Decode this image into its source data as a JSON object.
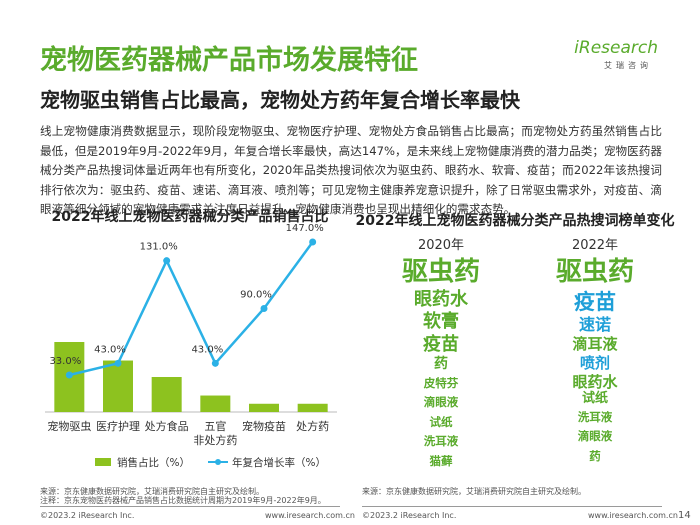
{
  "header": {
    "title": "宠物医药器械产品市场发展特征",
    "subtitle": "宠物驱虫销售占比最高，宠物处方药年复合增长率最快",
    "logo": "iResearch",
    "logo_sub": "艾瑞咨询"
  },
  "body": {
    "paragraph": "线上宠物健康消费数据显示，现阶段宠物驱虫、宠物医疗护理、宠物处方食品销售占比最高；而宠物处方药虽然销售占比最低，但是2019年9月-2022年9月，年复合增长率最快，高达147%，是未来线上宠物健康消费的潜力品类；宠物医药器械分类产品热搜词体量近两年也有所变化，2020年品类热搜词依次为驱虫药、眼药水、软膏、疫苗；而2022年该热搜词排行依次为：驱虫药、疫苗、速诺、滴耳液、喷剂等；可见宠物主健康养宠意识提升，除了日常驱虫需求外，对疫苗、滴眼液等细分领域的宠物健康需求关注度日益提升，宠物健康消费也呈现出精细化的需求态势。"
  },
  "chart_data": {
    "type": "bar",
    "title": "2022年线上宠物医药器械分类产品销售占比",
    "categories": [
      "宠物驱虫",
      "医疗护理",
      "处方食品",
      "五官\n非处方药",
      "宠物疫苗",
      "处方药"
    ],
    "series": [
      {
        "name": "销售占比（%）",
        "type": "bar",
        "color": "#8dc21f",
        "values": [
          34,
          25,
          17,
          8,
          4,
          4
        ]
      },
      {
        "name": "年复合增长率（%）",
        "type": "line",
        "color": "#2bb1e6",
        "values": [
          33.0,
          43.0,
          131.0,
          43.0,
          90.0,
          147.0
        ],
        "value_labels": [
          "33.0%",
          "43.0%",
          "131.0%",
          "43.0%",
          "90.0%",
          "147.0%"
        ]
      }
    ]
  },
  "ranking": {
    "title": "2022年线上宠物医药器械分类产品热搜词榜单变化",
    "columns": [
      {
        "year": "2020年",
        "items": [
          "驱虫药",
          "眼药水",
          "软膏",
          "疫苗",
          "药",
          "皮特芬",
          "滴眼液",
          "试纸",
          "洗耳液",
          "猫藓"
        ]
      },
      {
        "year": "2022年",
        "items": [
          "驱虫药",
          "疫苗",
          "速诺",
          "滴耳液",
          "喷剂",
          "眼药水",
          "试纸",
          "洗耳液",
          "滴眼液",
          "药"
        ]
      }
    ]
  },
  "footer": {
    "source_left": "来源：京东健康数据研究院，艾瑞消费研究院自主研究及绘制。",
    "note_left": "注释：京东宠物医药器械产品销售占比数据统计周期为2019年9月-2022年9月。",
    "source_right": "来源：京东健康数据研究院，艾瑞消费研究院自主研究及绘制。",
    "copyright": "©2023.2 iResearch Inc.",
    "url": "www.iresearch.com.cn",
    "page": "14"
  }
}
